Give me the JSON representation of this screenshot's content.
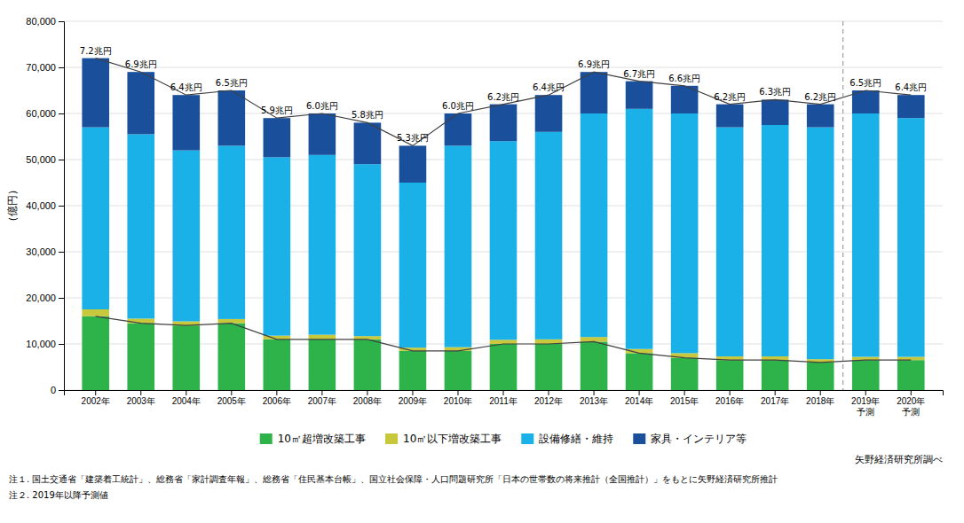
{
  "chart_data": {
    "type": "bar",
    "stacked": true,
    "categories": [
      "2002年",
      "2003年",
      "2004年",
      "2005年",
      "2006年",
      "2007年",
      "2008年",
      "2009年",
      "2010年",
      "2011年",
      "2012年",
      "2013年",
      "2014年",
      "2015年",
      "2016年",
      "2017年",
      "2018年",
      "2019年\n予測",
      "2020年\n予測"
    ],
    "series": [
      {
        "name": "10㎡超増改築工事",
        "type": "bar",
        "color": "#2db34a",
        "values": [
          16000,
          14500,
          14000,
          14500,
          11000,
          11000,
          11000,
          8500,
          8500,
          10000,
          10000,
          10500,
          8000,
          7000,
          6500,
          6500,
          6000,
          6500,
          6500
        ]
      },
      {
        "name": "10㎡以下増改築工事",
        "type": "bar",
        "color": "#c8c83c",
        "values": [
          1500,
          1000,
          900,
          900,
          800,
          1000,
          700,
          700,
          800,
          900,
          1000,
          1000,
          900,
          1000,
          800,
          800,
          700,
          700,
          700
        ]
      },
      {
        "name": "設備修繕・維持",
        "type": "bar",
        "color": "#1ab0e8",
        "values": [
          39500,
          40000,
          37100,
          37600,
          38700,
          39000,
          37300,
          35800,
          43700,
          43100,
          45000,
          48500,
          52100,
          52000,
          49700,
          50200,
          50300,
          52800,
          51800
        ]
      },
      {
        "name": "家具・インテリア等",
        "type": "bar",
        "color": "#1a4f9c",
        "values": [
          15000,
          13500,
          12000,
          12000,
          8500,
          9000,
          9000,
          8000,
          7000,
          8000,
          8000,
          9000,
          6000,
          6000,
          5000,
          5500,
          5000,
          5000,
          5000
        ]
      },
      {
        "type": "line",
        "color": "#404040",
        "data_labels": true,
        "values": [
          72000,
          69000,
          64000,
          65000,
          59000,
          60000,
          58000,
          53000,
          60000,
          62000,
          64000,
          69000,
          67000,
          66000,
          62000,
          63000,
          62000,
          65000,
          64000
        ],
        "value_labels": [
          "7.2兆円",
          "6.9兆円",
          "6.4兆円",
          "6.5兆円",
          "5.9兆円",
          "6.0兆円",
          "5.8兆円",
          "5.3兆円",
          "6.0兆円",
          "6.2兆円",
          "6.4兆円",
          "6.9兆円",
          "6.7兆円",
          "6.6兆円",
          "6.2兆円",
          "6.3兆円",
          "6.2兆円",
          "6.5兆円",
          "6.4兆円"
        ]
      },
      {
        "type": "line",
        "color": "#404040",
        "values": [
          16000,
          14500,
          14000,
          14500,
          11000,
          11000,
          11000,
          8500,
          8500,
          10000,
          10000,
          10500,
          8000,
          7000,
          6500,
          6500,
          6000,
          6500,
          6500
        ]
      }
    ],
    "y_label": "（億円）",
    "ylim": [
      0,
      80000
    ],
    "yticks": [
      0,
      {
        "value": 10000,
        "label": "10,000"
      },
      {
        "value": 20000,
        "label": "20,000"
      },
      {
        "value": 30000,
        "label": "30,000"
      },
      {
        "value": 40000,
        "label": "40,000"
      },
      {
        "value": 50000,
        "label": "50,000"
      },
      {
        "value": 60000,
        "label": "60,000"
      },
      {
        "value": 70000,
        "label": "70,000"
      },
      {
        "value": 80000,
        "label": "80,000"
      }
    ],
    "grid": true,
    "legend": "bottom",
    "forecast_from": "2019年\n予測",
    "source": "矢野経済研究所調べ",
    "notes": [
      "注１. 国土交通省「建築着工統計」、総務省「家計調査年報」、総務省「住民基本台帳」、国立社会保障・人口問題研究所「日本の世帯数の将来推計（全国推計）」をもとに矢野経済研究所推計",
      "注２. 2019年以降予測値"
    ]
  }
}
